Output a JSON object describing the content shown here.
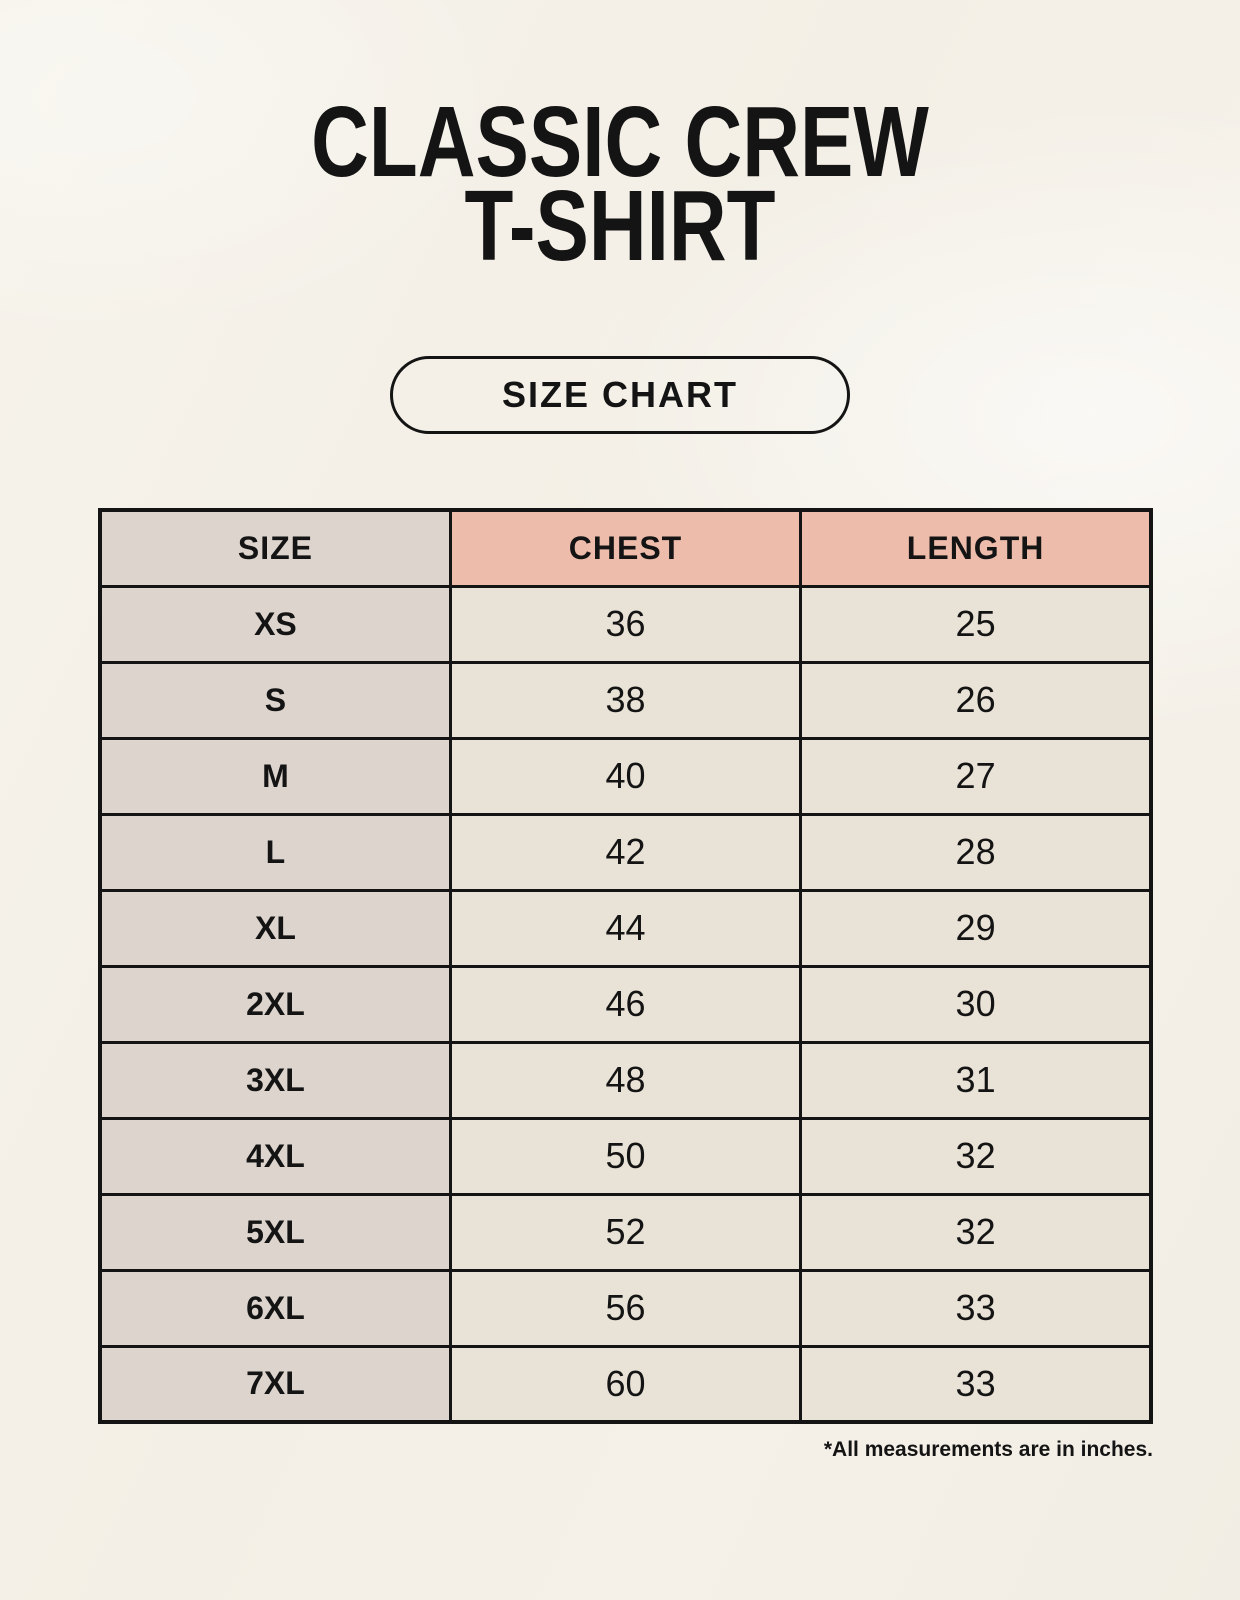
{
  "page": {
    "title_line1": "CLASSIC CREW",
    "title_line2": "T-SHIRT",
    "size_chart_button": "SIZE CHART",
    "footnote": "*All measurements are in inches."
  },
  "table": {
    "columns": [
      "SIZE",
      "CHEST",
      "LENGTH"
    ],
    "rows": [
      {
        "size": "XS",
        "chest": "36",
        "length": "25"
      },
      {
        "size": "S",
        "chest": "38",
        "length": "26"
      },
      {
        "size": "M",
        "chest": "40",
        "length": "27"
      },
      {
        "size": "L",
        "chest": "42",
        "length": "28"
      },
      {
        "size": "XL",
        "chest": "44",
        "length": "29"
      },
      {
        "size": "2XL",
        "chest": "46",
        "length": "30"
      },
      {
        "size": "3XL",
        "chest": "48",
        "length": "31"
      },
      {
        "size": "4XL",
        "chest": "50",
        "length": "32"
      },
      {
        "size": "5XL",
        "chest": "52",
        "length": "32"
      },
      {
        "size": "6XL",
        "chest": "56",
        "length": "33"
      },
      {
        "size": "7XL",
        "chest": "60",
        "length": "33"
      }
    ]
  },
  "chart_data": {
    "type": "table",
    "title": "CLASSIC CREW T-SHIRT",
    "columns": [
      "SIZE",
      "CHEST",
      "LENGTH"
    ],
    "rows": [
      [
        "XS",
        36,
        25
      ],
      [
        "S",
        38,
        26
      ],
      [
        "M",
        40,
        27
      ],
      [
        "L",
        42,
        28
      ],
      [
        "XL",
        44,
        29
      ],
      [
        "2XL",
        46,
        30
      ],
      [
        "3XL",
        48,
        31
      ],
      [
        "4XL",
        50,
        32
      ],
      [
        "5XL",
        52,
        32
      ],
      [
        "6XL",
        56,
        33
      ],
      [
        "7XL",
        60,
        33
      ]
    ],
    "note": "*All measurements are in inches."
  },
  "colors": {
    "background": "#f4f1e8",
    "header_accent": "#eebcab",
    "size_column": "#dcd4cd",
    "cell": "#e9e2d6",
    "border": "#141414",
    "text": "#141414"
  }
}
